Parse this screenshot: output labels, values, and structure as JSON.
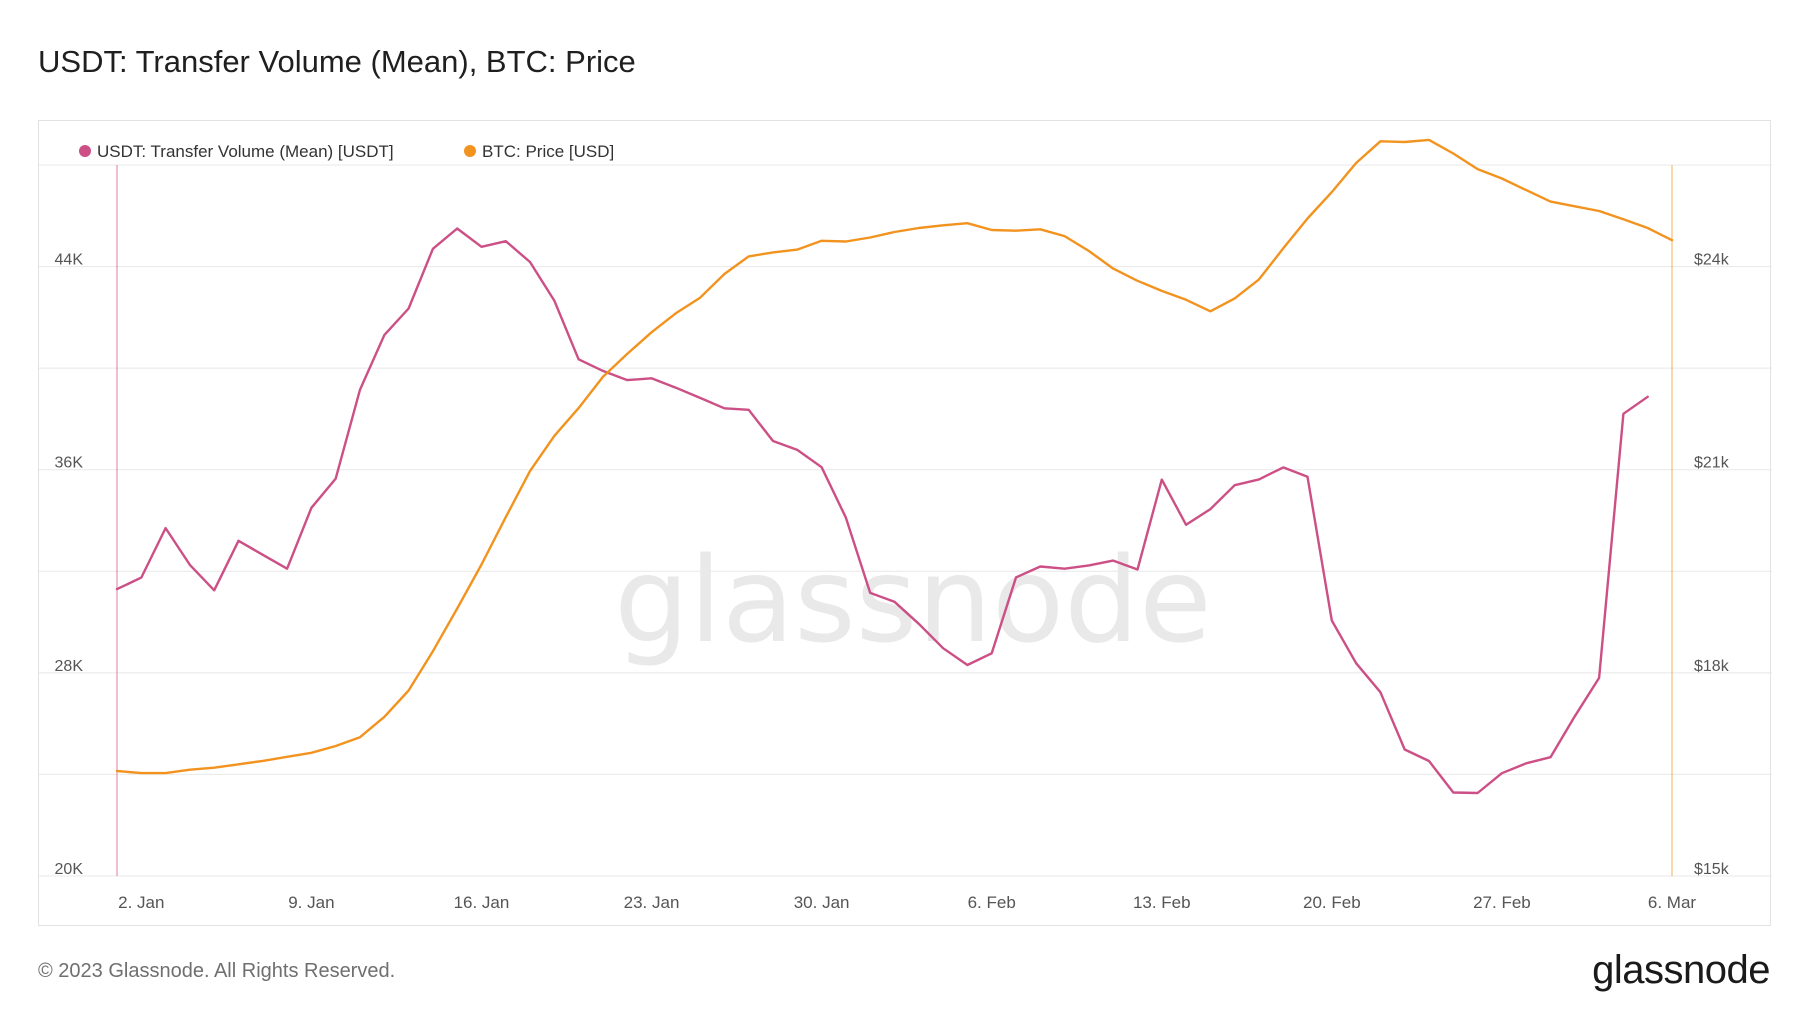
{
  "title": "USDT: Transfer Volume (Mean), BTC: Price",
  "footer": {
    "copyright": "© 2023 Glassnode. All Rights Reserved.",
    "logo": "glassnode"
  },
  "watermark": "glassnode",
  "colors": {
    "usdt": "#cc4f86",
    "btc": "#f2931f",
    "grid": "#e8e8e8",
    "axis_text": "#555555"
  },
  "chart_data": {
    "type": "line",
    "title": "USDT: Transfer Volume (Mean), BTC: Price",
    "x_dates": [
      "2023-01-01",
      "2023-03-06"
    ],
    "x_ticks": [
      {
        "label": "2. Jan",
        "date": "2023-01-02"
      },
      {
        "label": "9. Jan",
        "date": "2023-01-09"
      },
      {
        "label": "16. Jan",
        "date": "2023-01-16"
      },
      {
        "label": "23. Jan",
        "date": "2023-01-23"
      },
      {
        "label": "30. Jan",
        "date": "2023-01-30"
      },
      {
        "label": "6. Feb",
        "date": "2023-02-06"
      },
      {
        "label": "13. Feb",
        "date": "2023-02-13"
      },
      {
        "label": "20. Feb",
        "date": "2023-02-20"
      },
      {
        "label": "27. Feb",
        "date": "2023-02-27"
      },
      {
        "label": "6. Mar",
        "date": "2023-03-06"
      }
    ],
    "y_left": {
      "ylim": [
        20000,
        48000
      ],
      "ticks": [
        {
          "label": "20K",
          "value": 20000
        },
        {
          "label": "28K",
          "value": 28000
        },
        {
          "label": "36K",
          "value": 36000
        },
        {
          "label": "44K",
          "value": 44000
        }
      ]
    },
    "y_right": {
      "ylim": [
        15000,
        25500
      ],
      "ticks": [
        {
          "label": "$15k",
          "value": 15000
        },
        {
          "label": "$18k",
          "value": 18000
        },
        {
          "label": "$21k",
          "value": 21000
        },
        {
          "label": "$24k",
          "value": 24000
        }
      ]
    },
    "grid": true,
    "legend_position": "top-left",
    "series": [
      {
        "name": "USDT: Transfer Volume (Mean) [USDT]",
        "axis": "left",
        "start_date": "2023-01-01",
        "values": [
          31300,
          31750,
          33700,
          32250,
          31250,
          33200,
          32650,
          32100,
          34500,
          35650,
          39150,
          41300,
          42350,
          44700,
          45500,
          44780,
          45000,
          44180,
          42660,
          40350,
          39890,
          39530,
          39600,
          39230,
          38830,
          38420,
          38360,
          37130,
          36780,
          36100,
          34110,
          31150,
          30800,
          29930,
          28970,
          28310,
          28770,
          31760,
          32190,
          32100,
          32230,
          32420,
          32070,
          35610,
          33830,
          34450,
          35390,
          35620,
          36090,
          35720,
          30060,
          28380,
          27240,
          24980,
          24530,
          23290,
          23270,
          24050,
          24440,
          24680,
          26290,
          27800,
          38200,
          38870
        ]
      },
      {
        "name": "BTC: Price [USD]",
        "axis": "right",
        "start_date": "2023-01-01",
        "values": [
          16550,
          16520,
          16520,
          16570,
          16600,
          16650,
          16700,
          16760,
          16820,
          16920,
          17050,
          17350,
          17740,
          18320,
          18950,
          19600,
          20300,
          20980,
          21500,
          21910,
          22370,
          22710,
          23030,
          23310,
          23540,
          23890,
          24150,
          24210,
          24250,
          24380,
          24370,
          24430,
          24510,
          24570,
          24610,
          24640,
          24540,
          24530,
          24550,
          24450,
          24230,
          23970,
          23790,
          23640,
          23510,
          23340,
          23530,
          23810,
          24270,
          24710,
          25100,
          25530,
          25850,
          25840,
          25870,
          25670,
          25440,
          25300,
          25130,
          24960,
          24890,
          24820,
          24700,
          24570,
          24390
        ]
      }
    ]
  }
}
